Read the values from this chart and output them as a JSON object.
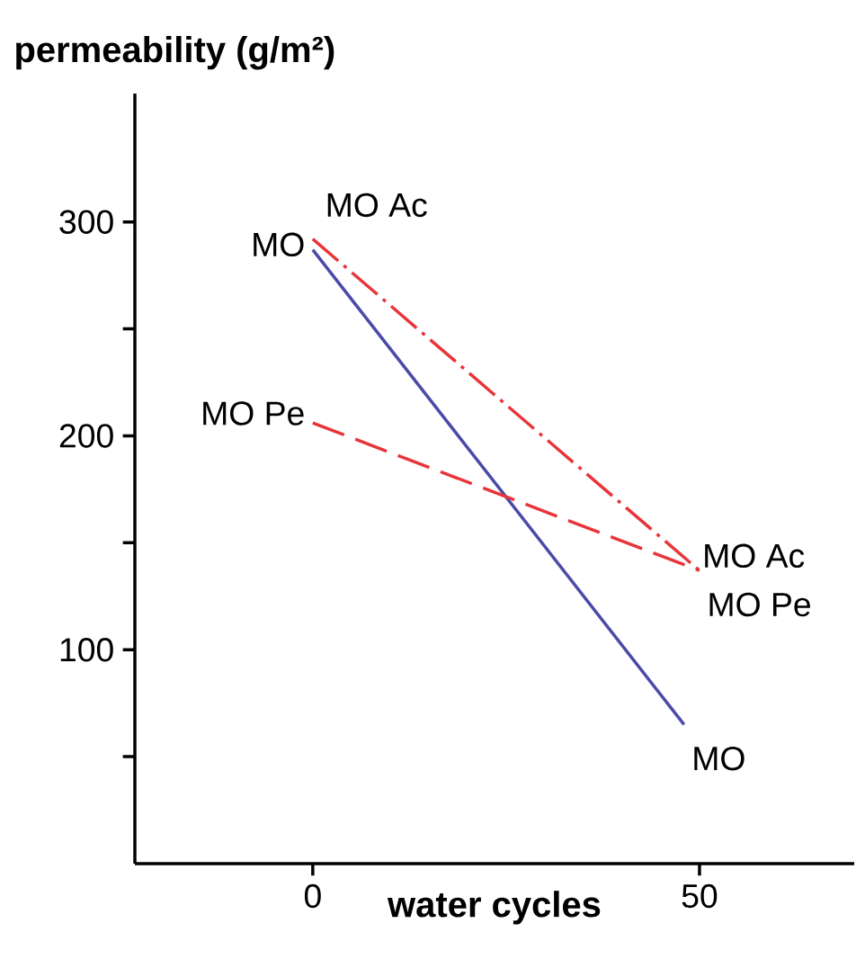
{
  "chart_data": {
    "type": "line",
    "xlabel": "water cycles",
    "ylabel": "permeability (g/m²)",
    "x": [
      0,
      50
    ],
    "xlim": [
      -23,
      70
    ],
    "ylim": [
      0,
      360
    ],
    "xticks": [
      0,
      50
    ],
    "yticks": [
      {
        "value": 50,
        "label": null
      },
      100,
      {
        "value": 150,
        "label": null
      },
      200,
      {
        "value": 250,
        "label": null
      },
      300
    ],
    "series": [
      {
        "name": "MO",
        "color": "#4a4aa8",
        "line_style": "solid",
        "x": [
          0,
          48
        ],
        "values": [
          287,
          65
        ]
      },
      {
        "name": "MO Ac",
        "color": "#e8353a",
        "line_style": "dashdotted",
        "values": [
          292,
          137
        ]
      },
      {
        "name": "MO Pe",
        "color": "#e8353a",
        "line_style": "dashed",
        "values": [
          206,
          137
        ]
      }
    ]
  }
}
